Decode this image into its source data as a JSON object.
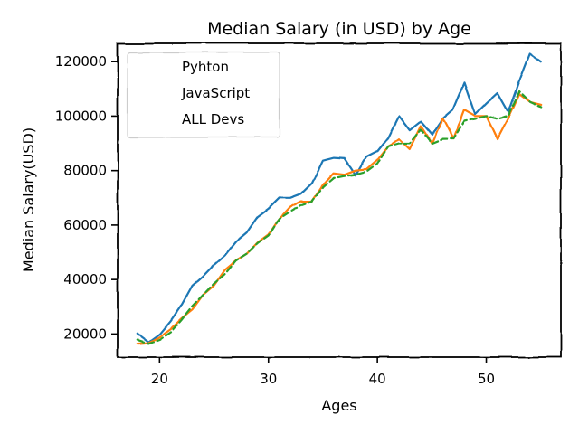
{
  "chart_data": {
    "type": "line",
    "title": "Median Salary (in USD) by Age",
    "xlabel": "Ages",
    "ylabel": "Median Salary(USD)",
    "xlim": [
      16.15,
      56.85
    ],
    "ylim": [
      11500,
      126700
    ],
    "x_ticks": [
      20,
      30,
      40,
      50
    ],
    "y_ticks": [
      20000,
      40000,
      60000,
      80000,
      100000,
      120000
    ],
    "x_tick_labels": [
      "20",
      "30",
      "40",
      "50"
    ],
    "y_tick_labels": [
      "20000",
      "40000",
      "60000",
      "80000",
      "100000",
      "120000"
    ],
    "grid": false,
    "legend_position": "upper-left",
    "x": [
      18,
      19,
      20,
      21,
      22,
      23,
      24,
      25,
      26,
      27,
      28,
      29,
      30,
      31,
      32,
      33,
      34,
      35,
      36,
      37,
      38,
      39,
      40,
      41,
      42,
      43,
      44,
      45,
      46,
      47,
      48,
      49,
      50,
      51,
      52,
      53,
      54,
      55
    ],
    "series": [
      {
        "name": "Pyhton",
        "color": "#1f77b4",
        "dash": "solid",
        "values": [
          20046,
          17100,
          20000,
          24744,
          30500,
          37732,
          41247,
          45372,
          48876,
          53850,
          57287,
          63016,
          65998,
          70003,
          70000,
          71496,
          75370,
          83640,
          84666,
          84392,
          78254,
          85000,
          87038,
          91991,
          100000,
          94796,
          97962,
          93302,
          99240,
          102736,
          112285,
          100771,
          104708,
          108423,
          101407,
          112542,
          122870,
          120000
        ]
      },
      {
        "name": "JavaScript",
        "color": "#ff7f0e",
        "dash": "solid",
        "values": [
          16446,
          16791,
          18942,
          21780,
          25704,
          29000,
          34372,
          37810,
          43515,
          46823,
          49293,
          53437,
          56373,
          62375,
          66674,
          68745,
          68746,
          74583,
          79000,
          78508,
          79996,
          80403,
          83820,
          88833,
          91660,
          87892,
          96243,
          90000,
          99313,
          91660,
          102264,
          100000,
          100000,
          91660,
          99240,
          108000,
          105000,
          104000
        ]
      },
      {
        "name": "ALL Devs",
        "color": "#2ca02c",
        "dash": "dashed",
        "values": [
          17784,
          16500,
          18012,
          20628,
          25206,
          30252,
          34368,
          38496,
          42000,
          46752,
          49320,
          53200,
          56000,
          62316,
          64928,
          67317,
          68748,
          73752,
          77232,
          78000,
          78508,
          79536,
          82488,
          88935,
          90000,
          90056,
          95000,
          90000,
          91633,
          91660,
          98150,
          98964,
          100000,
          98988,
          100000,
          108923,
          105000,
          103117
        ]
      }
    ]
  }
}
